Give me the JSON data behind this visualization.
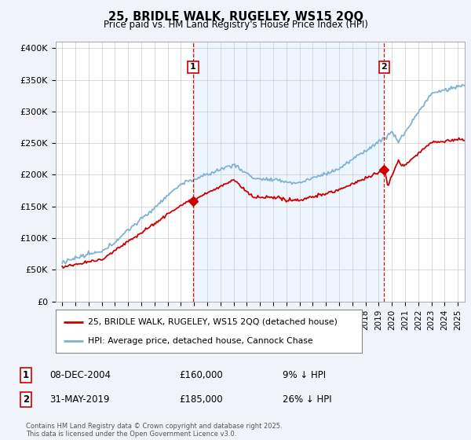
{
  "title": "25, BRIDLE WALK, RUGELEY, WS15 2QQ",
  "subtitle": "Price paid vs. HM Land Registry's House Price Index (HPI)",
  "ylabel_ticks": [
    "£0",
    "£50K",
    "£100K",
    "£150K",
    "£200K",
    "£250K",
    "£300K",
    "£350K",
    "£400K"
  ],
  "ytick_values": [
    0,
    50000,
    100000,
    150000,
    200000,
    250000,
    300000,
    350000,
    400000
  ],
  "ylim": [
    0,
    410000
  ],
  "xlim_start": 1994.5,
  "xlim_end": 2025.5,
  "purchase1_x": 2004.93,
  "purchase1_y": 160000,
  "purchase1_label": "1",
  "purchase1_date": "08-DEC-2004",
  "purchase1_price": "£160,000",
  "purchase1_vs_hpi": "9% ↓ HPI",
  "purchase2_x": 2019.42,
  "purchase2_y": 185000,
  "purchase2_label": "2",
  "purchase2_date": "31-MAY-2019",
  "purchase2_price": "£185,000",
  "purchase2_vs_hpi": "26% ↓ HPI",
  "legend_line1": "25, BRIDLE WALK, RUGELEY, WS15 2QQ (detached house)",
  "legend_line2": "HPI: Average price, detached house, Cannock Chase",
  "footer": "Contains HM Land Registry data © Crown copyright and database right 2025.\nThis data is licensed under the Open Government Licence v3.0.",
  "hpi_color": "#7fb3d3",
  "hpi_fill_color": "#ddeeff",
  "price_color": "#cc0000",
  "vline_color": "#cc0000",
  "background_color": "#f0f4fa",
  "plot_bg_color": "#ffffff",
  "grid_color": "#cccccc"
}
